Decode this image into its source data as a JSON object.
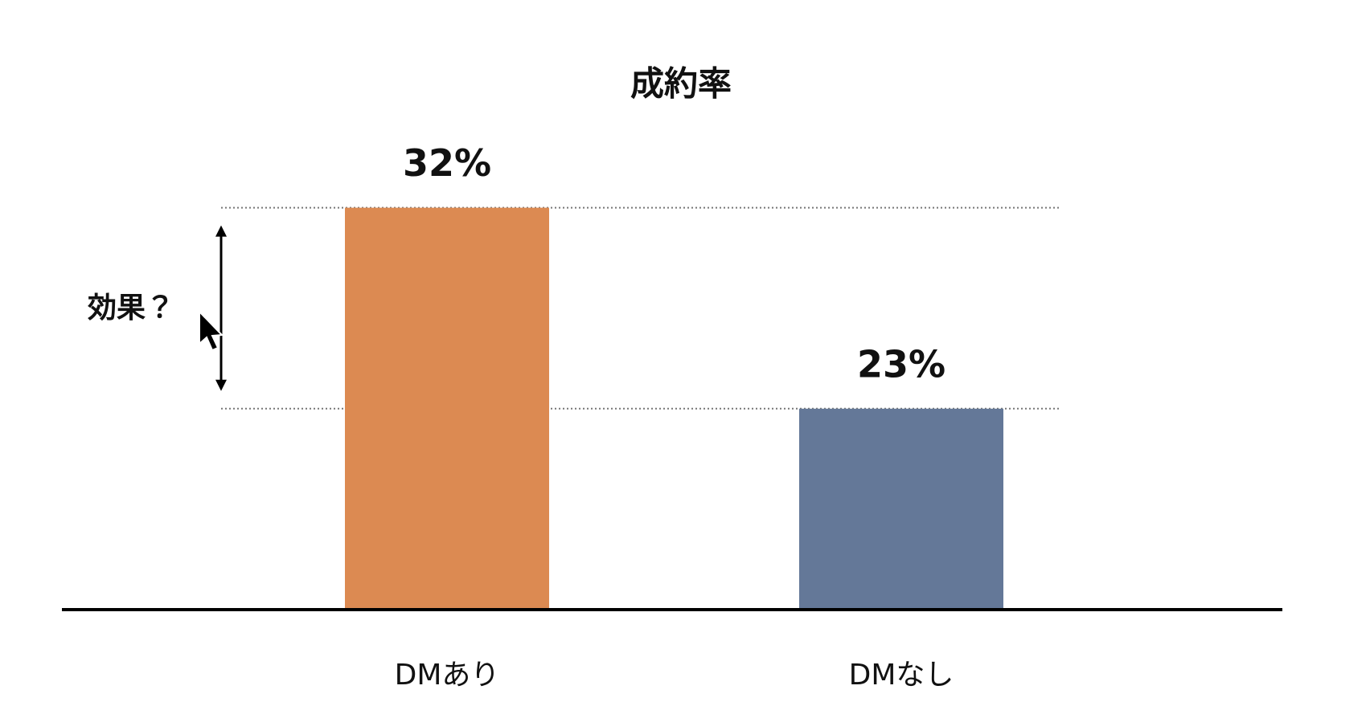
{
  "chart_data": {
    "type": "bar",
    "title": "成約率",
    "categories": [
      "DMあり",
      "DMなし"
    ],
    "values": [
      32,
      23
    ],
    "value_labels": [
      "32%",
      "23%"
    ],
    "colors": [
      "#dc8a52",
      "#647898"
    ],
    "ylim": [
      14,
      34
    ],
    "annotation": "効果？"
  }
}
